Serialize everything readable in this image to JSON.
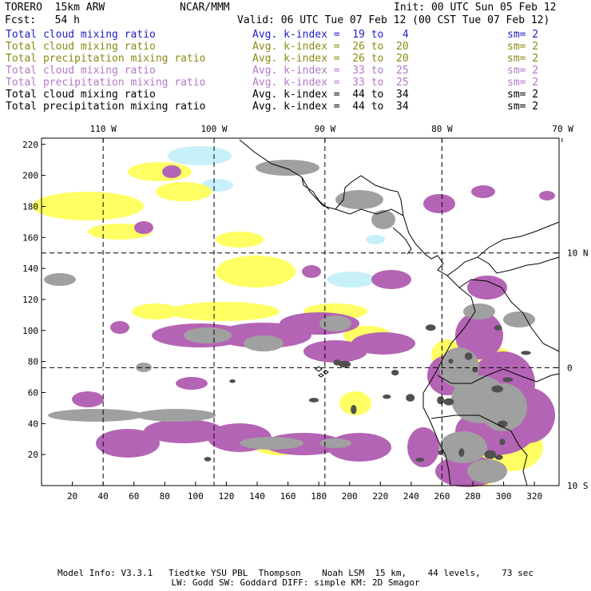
{
  "header": {
    "model": "TORERO  15km ARW",
    "org": "NCAR/MMM",
    "init": "Init: 00 UTC Sun 05 Feb 12",
    "fcst": "Fcst:   54 h",
    "valid": "Valid: 06 UTC Tue 07 Feb 12 (00 CST Tue 07 Feb 12)"
  },
  "legend": [
    {
      "field": "Total cloud mixing ratio",
      "kindex": "Avg. k-index =  19 to   4",
      "sm": "sm= 2",
      "color": "#1e1ec8"
    },
    {
      "field": "Total cloud mixing ratio",
      "kindex": "Avg. k-index =  26 to  20",
      "sm": "sm= 2",
      "color": "#8a8a14"
    },
    {
      "field": "Total precipitation mixing ratio",
      "kindex": "Avg. k-index =  26 to  20",
      "sm": "sm= 2",
      "color": "#8a8a14"
    },
    {
      "field": "Total cloud mixing ratio",
      "kindex": "Avg. k-index =  33 to  25",
      "sm": "sm= 2",
      "color": "#b478c8"
    },
    {
      "field": "Total precipitation mixing ratio",
      "kindex": "Avg. k-index =  33 to  25",
      "sm": "sm= 2",
      "color": "#b478c8"
    },
    {
      "field": "Total cloud mixing ratio",
      "kindex": "Avg. k-index =  44 to  34",
      "sm": "sm= 2",
      "color": "#000000"
    },
    {
      "field": "Total precipitation mixing ratio",
      "kindex": "Avg. k-index =  44 to  34",
      "sm": "sm= 2",
      "color": "#000000"
    }
  ],
  "axes": {
    "longitude_labels": [
      {
        "text": "110 W",
        "grid_x": 40
      },
      {
        "text": "100 W",
        "grid_x": 112
      },
      {
        "text": "90 W",
        "grid_x": 184
      },
      {
        "text": "80 W",
        "grid_x": 260
      },
      {
        "text": "70 W",
        "grid_x": 338
      }
    ],
    "latitude_labels": [
      {
        "text": "10 N",
        "grid_y": 150
      },
      {
        "text": "0",
        "grid_y": 76
      },
      {
        "text": "10 S",
        "grid_y": 0
      }
    ],
    "x_ticks": [
      20,
      40,
      60,
      80,
      100,
      120,
      140,
      160,
      180,
      200,
      220,
      240,
      260,
      280,
      300,
      320
    ],
    "y_ticks": [
      20,
      40,
      60,
      80,
      100,
      120,
      140,
      160,
      180,
      200,
      220
    ],
    "x_range": [
      0,
      336
    ],
    "y_range": [
      0,
      224
    ]
  },
  "colors": {
    "cloud_light": "#c8f0f8",
    "yellow": "#ffff64",
    "purple": "#b464b4",
    "gray": "#a0a0a0",
    "dark_gray": "#505050"
  },
  "footer": {
    "line1": "Model Info: V3.3.1   Tiedtke YSU PBL  Thompson    Noah LSM  15 km,    44 levels,    73 sec",
    "line2": "LW: Godd SW: Goddard DIFF: simple KM: 2D Smagor"
  }
}
